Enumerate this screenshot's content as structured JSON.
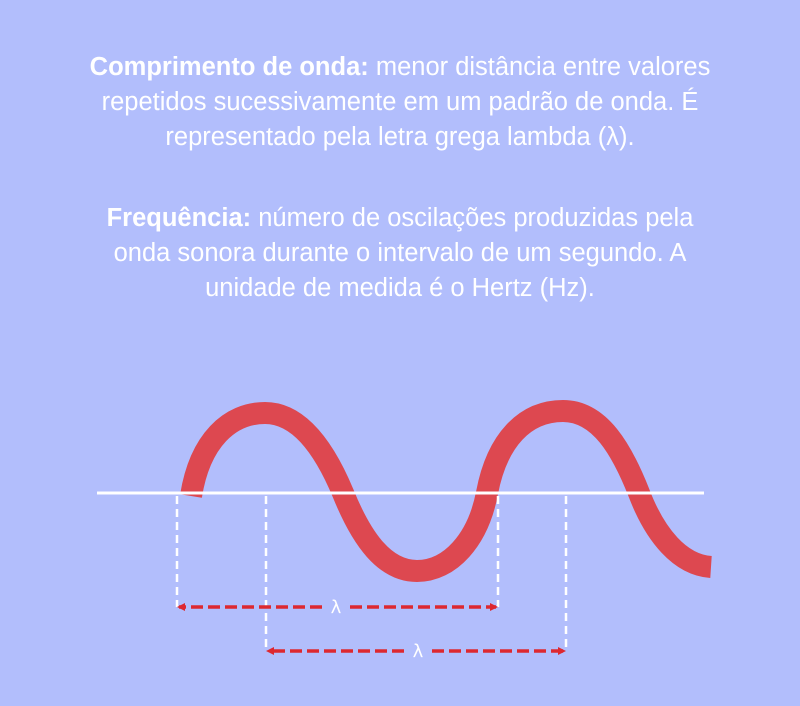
{
  "definitions": [
    {
      "term": "Comprimento de onda:",
      "lines": [
        " menor distância entre valores",
        "repetidos sucessivamente em um padrão de onda. É",
        "representado pela letra grega lambda (λ)."
      ]
    },
    {
      "term": "Frequência:",
      "lines": [
        " número de oscilações produzidas pela",
        "onda sonora durante o intervalo de um segundo. A",
        "unidade de medida é o Hertz (Hz)."
      ]
    }
  ],
  "diagram": {
    "wave_color": "#dd4850",
    "arrow_color": "#dd2830",
    "line_color": "#ffffff",
    "label_1": "λ",
    "label_2": "λ"
  }
}
